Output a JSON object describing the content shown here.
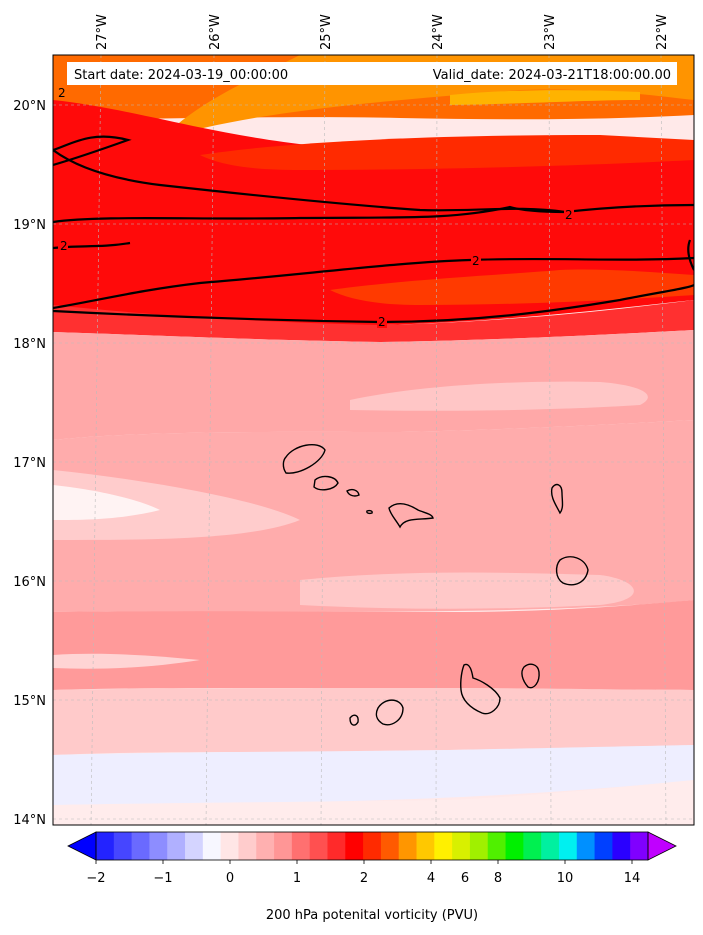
{
  "map": {
    "start_date": "Start date: 2024-03-19_00:00:00",
    "valid_date": "Valid_date: 2024-03-21T18:00:00.00",
    "lon_ticks": [
      "27°W",
      "26°W",
      "25°W",
      "24°W",
      "23°W",
      "22°W"
    ],
    "lat_ticks": [
      "20°N",
      "19°N",
      "18°N",
      "17°N",
      "16°N",
      "15°N",
      "14°N"
    ],
    "contour_value": "2",
    "contour_labels": [
      "2",
      "2",
      "2",
      "2",
      "2"
    ]
  },
  "colorbar": {
    "title": "200 hPa potenital vorticity (PVU)",
    "tick_labels": [
      "−2",
      "−1",
      "0",
      "1",
      "2",
      "4",
      "6",
      "8",
      "10",
      "14"
    ],
    "colors": [
      "#0000ff",
      "#2323ff",
      "#4646ff",
      "#6a6aff",
      "#8d8dff",
      "#b0b0ff",
      "#d4d4ff",
      "#f7f7ff",
      "#ffe6e6",
      "#ffcccc",
      "#ffb0b0",
      "#ff9696",
      "#ff7070",
      "#ff5050",
      "#ff2a2a",
      "#ff0000",
      "#ff2a00",
      "#ff5a00",
      "#ff9600",
      "#ffc800",
      "#fff000",
      "#d8f000",
      "#a0f000",
      "#50f000",
      "#00f000",
      "#00f050",
      "#00f0a0",
      "#00f0f0",
      "#0090ff",
      "#0040ff",
      "#2a00ff",
      "#8000ff",
      "#c000ff"
    ]
  }
}
